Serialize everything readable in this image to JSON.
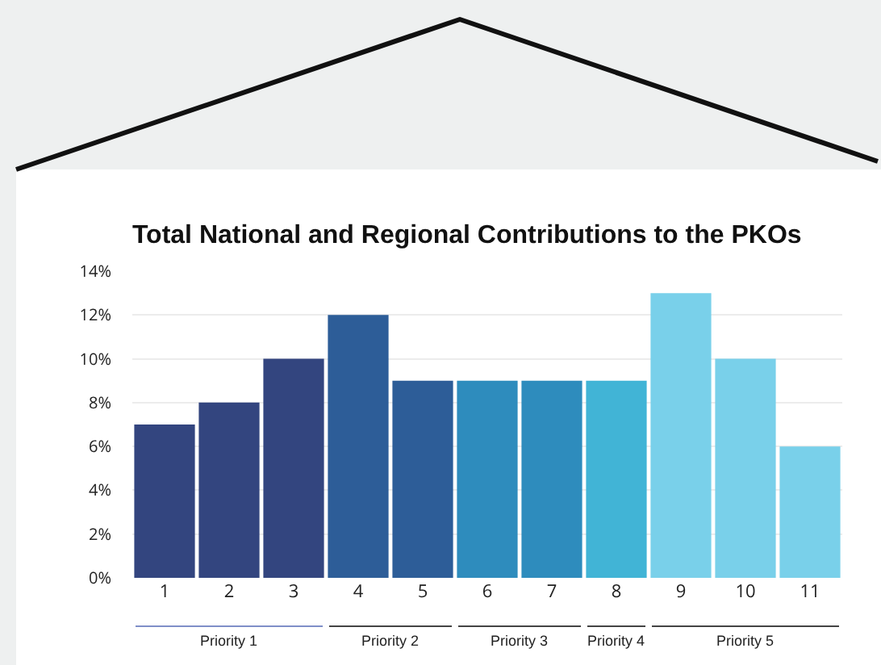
{
  "chart_data": {
    "type": "bar",
    "title": "Total National and Regional Contributions to the PKOs",
    "categories": [
      "1",
      "2",
      "3",
      "4",
      "5",
      "6",
      "7",
      "8",
      "9",
      "10",
      "11"
    ],
    "values": [
      7,
      8,
      10,
      12,
      9,
      9,
      9,
      9,
      13,
      10,
      6
    ],
    "colors": [
      "#33457f",
      "#33457f",
      "#33457f",
      "#2d5d98",
      "#2d5d98",
      "#2e8cbd",
      "#2e8cbd",
      "#41b4d6",
      "#79d0ea",
      "#79d0ea",
      "#79d0ea"
    ],
    "ylim": [
      0,
      14
    ],
    "yticks": [
      {
        "value": 0,
        "label": "0%"
      },
      {
        "value": 2,
        "label": "2%"
      },
      {
        "value": 4,
        "label": "4%"
      },
      {
        "value": 6,
        "label": "6%"
      },
      {
        "value": 8,
        "label": "8%"
      },
      {
        "value": 10,
        "label": "10%"
      },
      {
        "value": 12,
        "label": "12%"
      },
      {
        "value": 14,
        "label": "14%"
      }
    ],
    "grid": "y",
    "annotations": [
      "Priority 1",
      "Priority 2",
      "Priority 3",
      "Priority 4",
      "Priority 5"
    ]
  }
}
